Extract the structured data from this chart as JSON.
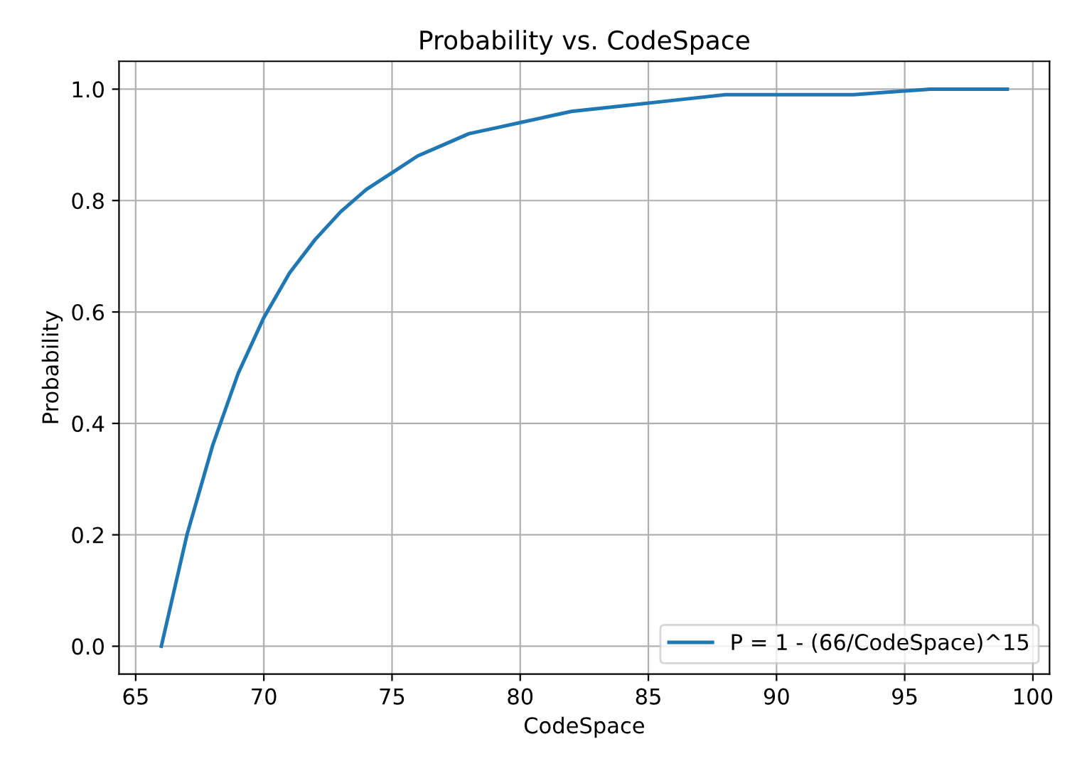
{
  "chart_data": {
    "type": "line",
    "title": "Probability vs. CodeSpace",
    "xlabel": "CodeSpace",
    "ylabel": "Probability",
    "x": [
      66,
      67,
      68,
      69,
      70,
      71,
      72,
      73,
      74,
      75,
      76,
      77,
      78,
      79,
      80,
      82,
      84,
      86,
      88,
      90,
      93,
      96,
      99
    ],
    "series": [
      {
        "name": "P = 1 - (66/CodeSpace)^15",
        "color": "#1f77b4",
        "values": [
          0.0,
          0.2,
          0.36,
          0.49,
          0.59,
          0.67,
          0.73,
          0.78,
          0.82,
          0.85,
          0.88,
          0.9,
          0.92,
          0.93,
          0.94,
          0.96,
          0.97,
          0.98,
          0.99,
          0.99,
          0.99,
          1.0,
          1.0
        ]
      }
    ],
    "xlim": [
      64.35,
      100.65
    ],
    "ylim": [
      -0.05,
      1.05
    ],
    "xticks": [
      65,
      70,
      75,
      80,
      85,
      90,
      95,
      100
    ],
    "yticks": [
      {
        "value": 0,
        "label": "0.0"
      },
      {
        "value": 0.2,
        "label": "0.2"
      },
      {
        "value": 0.4,
        "label": "0.4"
      },
      {
        "value": 0.6,
        "label": "0.6"
      },
      {
        "value": 0.8,
        "label": "0.8"
      },
      {
        "value": 1,
        "label": "1.0"
      }
    ],
    "grid": true,
    "legend": "bottom right",
    "marker": "none",
    "line_style": "solid"
  }
}
